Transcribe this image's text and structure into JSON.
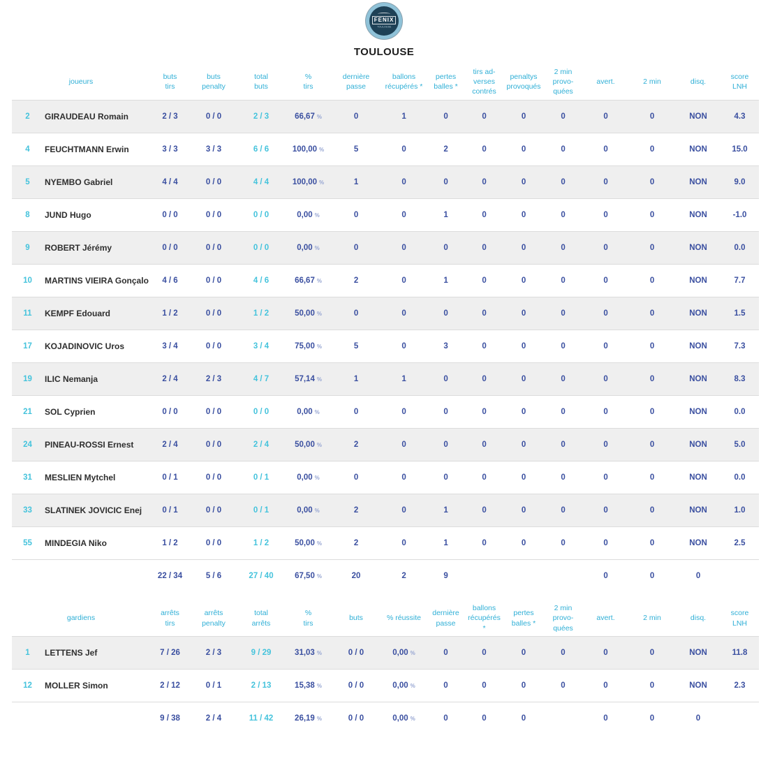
{
  "colors": {
    "header_cyan": "#2fafd6",
    "value_navy": "#3a4fa0",
    "total_cyan": "#45c3dc",
    "name_dark": "#2e2e2e",
    "row_stripe": "#efefef",
    "logo_navy": "#1e4156",
    "logo_ring": "#8fc2d8"
  },
  "team": {
    "title": "TOULOUSE",
    "logo_text": "FENIX",
    "logo_subtext": "TOULOUSE"
  },
  "players_table": {
    "row_name": "player-row",
    "columns": [
      {
        "key": "num",
        "label": "",
        "type": "num"
      },
      {
        "key": "name",
        "label": "joueurs",
        "type": "name"
      },
      {
        "key": "buts_tirs",
        "label": "buts\ntirs",
        "type": "frac"
      },
      {
        "key": "buts_penalty",
        "label": "buts\npenalty",
        "type": "frac"
      },
      {
        "key": "total_buts",
        "label": "total\nbuts",
        "type": "frac-total"
      },
      {
        "key": "pct_tirs",
        "label": "%\ntirs",
        "type": "pct"
      },
      {
        "key": "derniere_passe",
        "label": "dernière\npasse",
        "type": "count"
      },
      {
        "key": "ballons_recuperes",
        "label": "ballons\nrécupérés *",
        "type": "count"
      },
      {
        "key": "pertes_balles",
        "label": "pertes\nballes *",
        "type": "count"
      },
      {
        "key": "tirs_adverses_contres",
        "label": "tirs ad-\nverses\ncontrés",
        "type": "count"
      },
      {
        "key": "penaltys_provoques",
        "label": "penaltys\nprovoqués",
        "type": "count"
      },
      {
        "key": "min2_provoquees",
        "label": "2 min\nprovo-\nquées",
        "type": "count"
      },
      {
        "key": "avert",
        "label": "avert.",
        "type": "count"
      },
      {
        "key": "min2",
        "label": "2 min",
        "type": "count"
      },
      {
        "key": "disq",
        "label": "disq.",
        "type": "flag"
      },
      {
        "key": "score_lnh",
        "label": "score\nLNH",
        "type": "score"
      }
    ],
    "rows": [
      {
        "num": "2",
        "name": "GIRAUDEAU Romain",
        "buts_tirs": "2 / 3",
        "buts_penalty": "0 / 0",
        "total_buts": "2 / 3",
        "pct_tirs": "66,67 %",
        "derniere_passe": "0",
        "ballons_recuperes": "1",
        "pertes_balles": "0",
        "tirs_adverses_contres": "0",
        "penaltys_provoques": "0",
        "min2_provoquees": "0",
        "avert": "0",
        "min2": "0",
        "disq": "NON",
        "score_lnh": "4.3"
      },
      {
        "num": "4",
        "name": "FEUCHTMANN Erwin",
        "buts_tirs": "3 / 3",
        "buts_penalty": "3 / 3",
        "total_buts": "6 / 6",
        "pct_tirs": "100,00 %",
        "derniere_passe": "5",
        "ballons_recuperes": "0",
        "pertes_balles": "2",
        "tirs_adverses_contres": "0",
        "penaltys_provoques": "0",
        "min2_provoquees": "0",
        "avert": "0",
        "min2": "0",
        "disq": "NON",
        "score_lnh": "15.0"
      },
      {
        "num": "5",
        "name": "NYEMBO Gabriel",
        "buts_tirs": "4 / 4",
        "buts_penalty": "0 / 0",
        "total_buts": "4 / 4",
        "pct_tirs": "100,00 %",
        "derniere_passe": "1",
        "ballons_recuperes": "0",
        "pertes_balles": "0",
        "tirs_adverses_contres": "0",
        "penaltys_provoques": "0",
        "min2_provoquees": "0",
        "avert": "0",
        "min2": "0",
        "disq": "NON",
        "score_lnh": "9.0"
      },
      {
        "num": "8",
        "name": "JUND Hugo",
        "buts_tirs": "0 / 0",
        "buts_penalty": "0 / 0",
        "total_buts": "0 / 0",
        "pct_tirs": "0,00 %",
        "derniere_passe": "0",
        "ballons_recuperes": "0",
        "pertes_balles": "1",
        "tirs_adverses_contres": "0",
        "penaltys_provoques": "0",
        "min2_provoquees": "0",
        "avert": "0",
        "min2": "0",
        "disq": "NON",
        "score_lnh": "-1.0"
      },
      {
        "num": "9",
        "name": "ROBERT Jérémy",
        "buts_tirs": "0 / 0",
        "buts_penalty": "0 / 0",
        "total_buts": "0 / 0",
        "pct_tirs": "0,00 %",
        "derniere_passe": "0",
        "ballons_recuperes": "0",
        "pertes_balles": "0",
        "tirs_adverses_contres": "0",
        "penaltys_provoques": "0",
        "min2_provoquees": "0",
        "avert": "0",
        "min2": "0",
        "disq": "NON",
        "score_lnh": "0.0"
      },
      {
        "num": "10",
        "name": "MARTINS VIEIRA Gonçalo",
        "buts_tirs": "4 / 6",
        "buts_penalty": "0 / 0",
        "total_buts": "4 / 6",
        "pct_tirs": "66,67 %",
        "derniere_passe": "2",
        "ballons_recuperes": "0",
        "pertes_balles": "1",
        "tirs_adverses_contres": "0",
        "penaltys_provoques": "0",
        "min2_provoquees": "0",
        "avert": "0",
        "min2": "0",
        "disq": "NON",
        "score_lnh": "7.7"
      },
      {
        "num": "11",
        "name": "KEMPF Edouard",
        "buts_tirs": "1 / 2",
        "buts_penalty": "0 / 0",
        "total_buts": "1 / 2",
        "pct_tirs": "50,00 %",
        "derniere_passe": "0",
        "ballons_recuperes": "0",
        "pertes_balles": "0",
        "tirs_adverses_contres": "0",
        "penaltys_provoques": "0",
        "min2_provoquees": "0",
        "avert": "0",
        "min2": "0",
        "disq": "NON",
        "score_lnh": "1.5"
      },
      {
        "num": "17",
        "name": "KOJADINOVIC Uros",
        "buts_tirs": "3 / 4",
        "buts_penalty": "0 / 0",
        "total_buts": "3 / 4",
        "pct_tirs": "75,00 %",
        "derniere_passe": "5",
        "ballons_recuperes": "0",
        "pertes_balles": "3",
        "tirs_adverses_contres": "0",
        "penaltys_provoques": "0",
        "min2_provoquees": "0",
        "avert": "0",
        "min2": "0",
        "disq": "NON",
        "score_lnh": "7.3"
      },
      {
        "num": "19",
        "name": "ILIC Nemanja",
        "buts_tirs": "2 / 4",
        "buts_penalty": "2 / 3",
        "total_buts": "4 / 7",
        "pct_tirs": "57,14 %",
        "derniere_passe": "1",
        "ballons_recuperes": "1",
        "pertes_balles": "0",
        "tirs_adverses_contres": "0",
        "penaltys_provoques": "0",
        "min2_provoquees": "0",
        "avert": "0",
        "min2": "0",
        "disq": "NON",
        "score_lnh": "8.3"
      },
      {
        "num": "21",
        "name": "SOL Cyprien",
        "buts_tirs": "0 / 0",
        "buts_penalty": "0 / 0",
        "total_buts": "0 / 0",
        "pct_tirs": "0,00 %",
        "derniere_passe": "0",
        "ballons_recuperes": "0",
        "pertes_balles": "0",
        "tirs_adverses_contres": "0",
        "penaltys_provoques": "0",
        "min2_provoquees": "0",
        "avert": "0",
        "min2": "0",
        "disq": "NON",
        "score_lnh": "0.0"
      },
      {
        "num": "24",
        "name": "PINEAU-ROSSI Ernest",
        "buts_tirs": "2 / 4",
        "buts_penalty": "0 / 0",
        "total_buts": "2 / 4",
        "pct_tirs": "50,00 %",
        "derniere_passe": "2",
        "ballons_recuperes": "0",
        "pertes_balles": "0",
        "tirs_adverses_contres": "0",
        "penaltys_provoques": "0",
        "min2_provoquees": "0",
        "avert": "0",
        "min2": "0",
        "disq": "NON",
        "score_lnh": "5.0"
      },
      {
        "num": "31",
        "name": "MESLIEN Mytchel",
        "buts_tirs": "0 / 1",
        "buts_penalty": "0 / 0",
        "total_buts": "0 / 1",
        "pct_tirs": "0,00 %",
        "derniere_passe": "0",
        "ballons_recuperes": "0",
        "pertes_balles": "0",
        "tirs_adverses_contres": "0",
        "penaltys_provoques": "0",
        "min2_provoquees": "0",
        "avert": "0",
        "min2": "0",
        "disq": "NON",
        "score_lnh": "0.0"
      },
      {
        "num": "33",
        "name": "SLATINEK JOVICIC Enej",
        "buts_tirs": "0 / 1",
        "buts_penalty": "0 / 0",
        "total_buts": "0 / 1",
        "pct_tirs": "0,00 %",
        "derniere_passe": "2",
        "ballons_recuperes": "0",
        "pertes_balles": "1",
        "tirs_adverses_contres": "0",
        "penaltys_provoques": "0",
        "min2_provoquees": "0",
        "avert": "0",
        "min2": "0",
        "disq": "NON",
        "score_lnh": "1.0"
      },
      {
        "num": "55",
        "name": "MINDEGIA Niko",
        "buts_tirs": "1 / 2",
        "buts_penalty": "0 / 0",
        "total_buts": "1 / 2",
        "pct_tirs": "50,00 %",
        "derniere_passe": "2",
        "ballons_recuperes": "0",
        "pertes_balles": "1",
        "tirs_adverses_contres": "0",
        "penaltys_provoques": "0",
        "min2_provoquees": "0",
        "avert": "0",
        "min2": "0",
        "disq": "NON",
        "score_lnh": "2.5"
      }
    ],
    "totals": {
      "num": "",
      "name": "",
      "buts_tirs": "22 / 34",
      "buts_penalty": "5 / 6",
      "total_buts": "27 / 40",
      "pct_tirs": "67,50 %",
      "derniere_passe": "20",
      "ballons_recuperes": "2",
      "pertes_balles": "9",
      "tirs_adverses_contres": "",
      "penaltys_provoques": "",
      "min2_provoquees": "",
      "avert": "0",
      "min2": "0",
      "disq": "0",
      "score_lnh": ""
    }
  },
  "keepers_table": {
    "row_name": "keeper-row",
    "columns": [
      {
        "key": "num",
        "label": "",
        "type": "num"
      },
      {
        "key": "name",
        "label": "gardiens",
        "type": "name"
      },
      {
        "key": "arrets_tirs",
        "label": "arrêts\ntirs",
        "type": "frac"
      },
      {
        "key": "arrets_penalty",
        "label": "arrêts\npenalty",
        "type": "frac"
      },
      {
        "key": "total_arrets",
        "label": "total\narrêts",
        "type": "frac-total"
      },
      {
        "key": "pct_tirs",
        "label": "%\ntirs",
        "type": "pct"
      },
      {
        "key": "buts",
        "label": "buts",
        "type": "frac"
      },
      {
        "key": "pct_reussite",
        "label": "% réussite",
        "type": "pct"
      },
      {
        "key": "derniere_passe",
        "label": "dernière\npasse",
        "type": "count"
      },
      {
        "key": "ballons_recuperes",
        "label": "ballons\nrécupérés *",
        "type": "count"
      },
      {
        "key": "pertes_balles",
        "label": "pertes\nballes *",
        "type": "count"
      },
      {
        "key": "min2_provoquees",
        "label": "2 min\nprovo-\nquées",
        "type": "count"
      },
      {
        "key": "avert",
        "label": "avert.",
        "type": "count"
      },
      {
        "key": "min2",
        "label": "2 min",
        "type": "count"
      },
      {
        "key": "disq",
        "label": "disq.",
        "type": "flag"
      },
      {
        "key": "score_lnh",
        "label": "score\nLNH",
        "type": "score"
      }
    ],
    "rows": [
      {
        "num": "1",
        "name": "LETTENS Jef",
        "arrets_tirs": "7 / 26",
        "arrets_penalty": "2 / 3",
        "total_arrets": "9 / 29",
        "pct_tirs": "31,03 %",
        "buts": "0 / 0",
        "pct_reussite": "0,00 %",
        "derniere_passe": "0",
        "ballons_recuperes": "0",
        "pertes_balles": "0",
        "min2_provoquees": "0",
        "avert": "0",
        "min2": "0",
        "disq": "NON",
        "score_lnh": "11.8"
      },
      {
        "num": "12",
        "name": "MOLLER Simon",
        "arrets_tirs": "2 / 12",
        "arrets_penalty": "0 / 1",
        "total_arrets": "2 / 13",
        "pct_tirs": "15,38 %",
        "buts": "0 / 0",
        "pct_reussite": "0,00 %",
        "derniere_passe": "0",
        "ballons_recuperes": "0",
        "pertes_balles": "0",
        "min2_provoquees": "0",
        "avert": "0",
        "min2": "0",
        "disq": "NON",
        "score_lnh": "2.3"
      }
    ],
    "totals": {
      "num": "",
      "name": "",
      "arrets_tirs": "9 / 38",
      "arrets_penalty": "2 / 4",
      "total_arrets": "11 / 42",
      "pct_tirs": "26,19 %",
      "buts": "0 / 0",
      "pct_reussite": "0,00 %",
      "derniere_passe": "0",
      "ballons_recuperes": "0",
      "pertes_balles": "0",
      "min2_provoquees": "",
      "avert": "0",
      "min2": "0",
      "disq": "0",
      "score_lnh": ""
    }
  }
}
